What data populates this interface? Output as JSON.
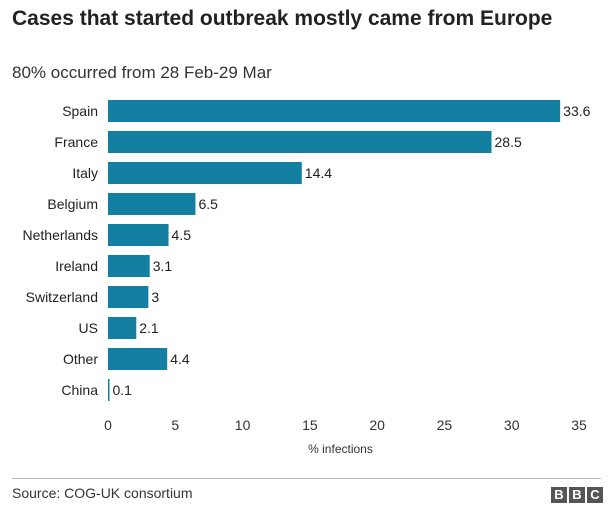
{
  "chart_data": {
    "type": "bar",
    "orientation": "horizontal",
    "title": "Cases that started outbreak mostly came from Europe",
    "subtitle": "80% occurred from 28 Feb-29 Mar",
    "categories": [
      "Spain",
      "France",
      "Italy",
      "Belgium",
      "Netherlands",
      "Ireland",
      "Switzerland",
      "US",
      "Other",
      "China"
    ],
    "values": [
      33.6,
      28.5,
      14.4,
      6.5,
      4.5,
      3.1,
      3,
      2.1,
      4.4,
      0.1
    ],
    "value_labels": [
      "33.6",
      "28.5",
      "14.4",
      "6.5",
      "4.5",
      "3.1",
      "3",
      "2.1",
      "4.4",
      "0.1"
    ],
    "xlabel": "% infections",
    "ylabel": "",
    "xlim": [
      0,
      35
    ],
    "xticks": [
      0,
      5,
      10,
      15,
      20,
      25,
      30,
      35
    ],
    "grid": false,
    "bar_color": "#1380A1"
  },
  "footer": {
    "source": "Source: COG-UK consortium",
    "logo_letters": [
      "B",
      "B",
      "C"
    ]
  },
  "colors": {
    "text": "#222222",
    "axis": "#333333"
  }
}
